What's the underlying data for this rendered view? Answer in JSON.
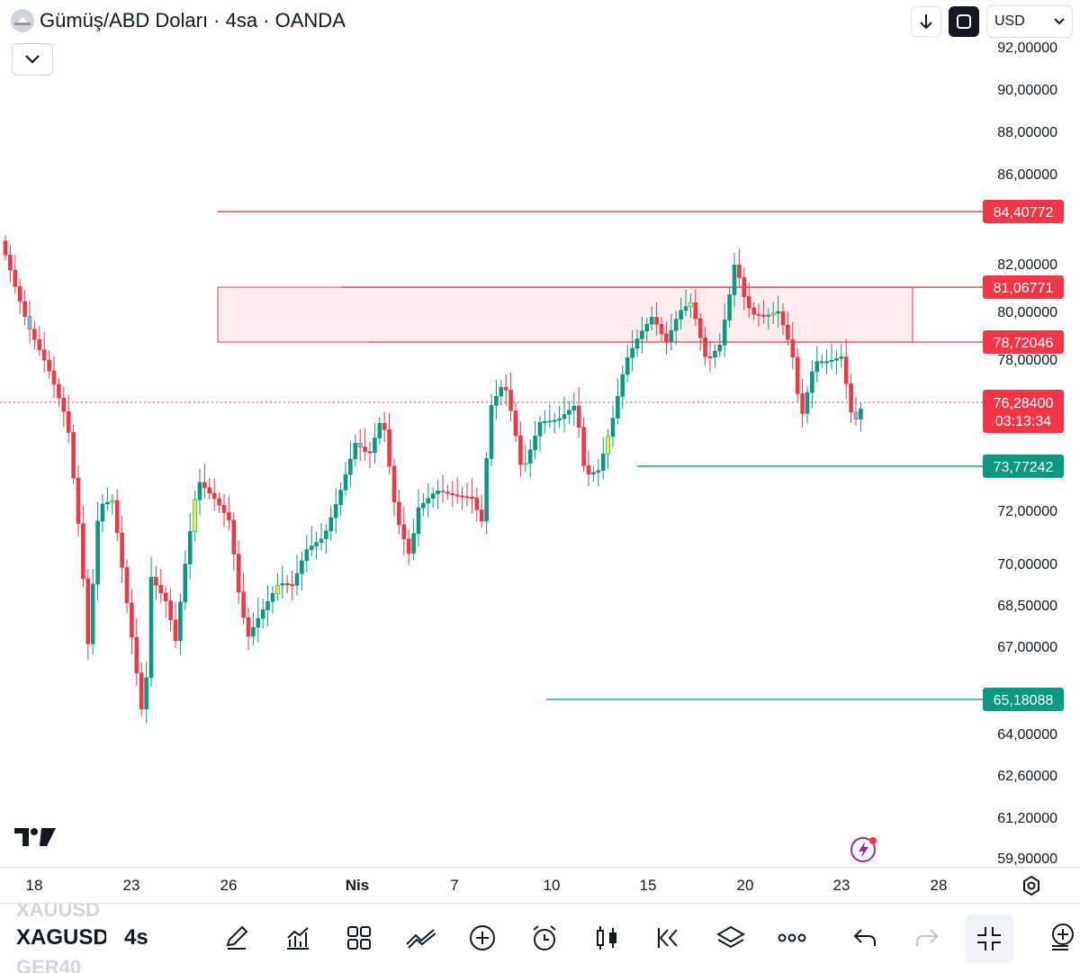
{
  "header": {
    "title": "Gümüş/ABD Doları · 4sa · OANDA"
  },
  "top_tools": {
    "currency": "USD"
  },
  "chart_data": {
    "type": "candlestick",
    "price_axis": {
      "ticks": [
        "92,00000",
        "90,00000",
        "88,00000",
        "86,00000",
        "82,00000",
        "80,00000",
        "78,00000",
        "72,00000",
        "70,00000",
        "68,50000",
        "67,00000",
        "64,00000",
        "62,60000",
        "61,20000",
        "59,90000"
      ]
    },
    "time_axis": {
      "labels": [
        {
          "text": "18",
          "bold": false
        },
        {
          "text": "23",
          "bold": false
        },
        {
          "text": "26",
          "bold": false
        },
        {
          "text": "Nis",
          "bold": true
        },
        {
          "text": "7",
          "bold": false
        },
        {
          "text": "10",
          "bold": false
        },
        {
          "text": "15",
          "bold": false
        },
        {
          "text": "20",
          "bold": false
        },
        {
          "text": "23",
          "bold": false
        },
        {
          "text": "28",
          "bold": false
        }
      ]
    },
    "levels": [
      {
        "value": "84,40772",
        "color": "#f23645",
        "kind": "resistance"
      },
      {
        "value": "81,06771",
        "color": "#f23645",
        "kind": "zone-top"
      },
      {
        "value": "78,72046",
        "color": "#f23645",
        "kind": "zone-bottom"
      },
      {
        "value": "73,77242",
        "color": "#089981",
        "kind": "support"
      },
      {
        "value": "65,18088",
        "color": "#089981",
        "kind": "support"
      }
    ],
    "current_price": {
      "value": "76,28400",
      "countdown": "03:13:34",
      "color": "#f23645"
    },
    "colors": {
      "up": "#089981",
      "down": "#f23645",
      "highlight_up": "#e6f23a",
      "highlight_down": "#5cc8e8",
      "zone_fill": "#fdecee"
    }
  },
  "bottom_bar": {
    "symbol_prev": "XAUUSD",
    "symbol": "XAGUSD",
    "symbol_next": "GER40",
    "interval": "4s",
    "icons": [
      "pencil-icon",
      "indicators-icon",
      "layout-grid-icon",
      "drawing-tools-icon",
      "add-icon",
      "alert-icon",
      "candle-type-icon",
      "replay-icon",
      "layers-icon",
      "more-icon",
      "undo-icon",
      "redo-icon",
      "fullscreen-exit-icon",
      "add-chart-icon"
    ]
  }
}
